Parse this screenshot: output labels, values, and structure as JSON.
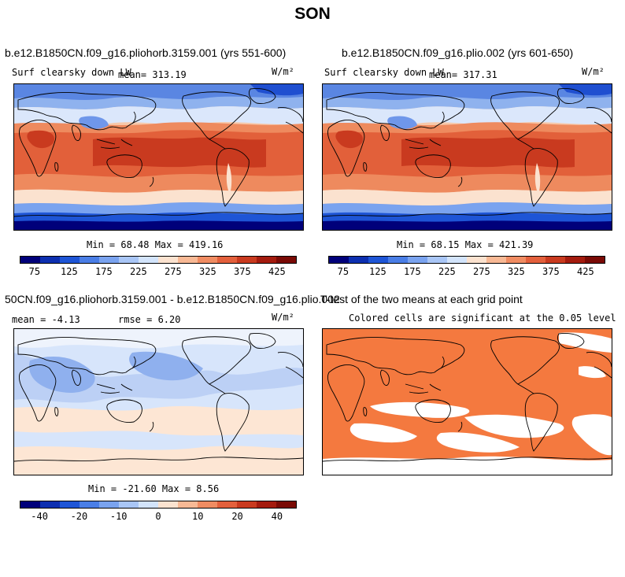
{
  "page_title": "SON",
  "panels": {
    "top_left": {
      "title": "b.e12.B1850CN.f09_g16.pliohorb.3159.001 (yrs 551-600)",
      "variable": "Surf clearsky down LW",
      "mean_label": "mean= 313.19",
      "units": "W/m²",
      "minmax": "Min =  68.48 Max = 419.16"
    },
    "top_right": {
      "title": "b.e12.B1850CN.f09_g16.plio.002 (yrs 601-650)",
      "variable": "Surf clearsky down LW",
      "mean_label": "mean= 317.31",
      "units": "W/m²",
      "minmax": "Min =  68.15 Max = 421.39"
    },
    "bottom_left": {
      "title": "50CN.f09_g16.pliohorb.3159.001 - b.e12.B1850CN.f09_g16.plio.002",
      "mean_label": "mean =  -4.13",
      "rmse_label": "rmse =   6.20",
      "units": "W/m²",
      "minmax": "Min = -21.60 Max =   8.56"
    },
    "bottom_right": {
      "title": "T-test of the two means at each grid point",
      "subtitle": "Colored cells are significant at the 0.05 level"
    }
  },
  "colorbars": {
    "abs_ticks": [
      "75",
      "125",
      "175",
      "225",
      "275",
      "325",
      "375",
      "425"
    ],
    "diff_ticks": [
      "-40",
      "-20",
      "-10",
      "0",
      "10",
      "20",
      "40"
    ],
    "colors": [
      "#00007a",
      "#0d2fb0",
      "#1e55d6",
      "#4a7ee6",
      "#7aa3ef",
      "#a9c6f6",
      "#d3e4fb",
      "#fbe2cf",
      "#f8b995",
      "#f08c62",
      "#e3603c",
      "#c93a1f",
      "#a41b0e",
      "#7a0a05"
    ]
  },
  "colors": {
    "significant": "#f4793f",
    "land_line": "#000000"
  }
}
